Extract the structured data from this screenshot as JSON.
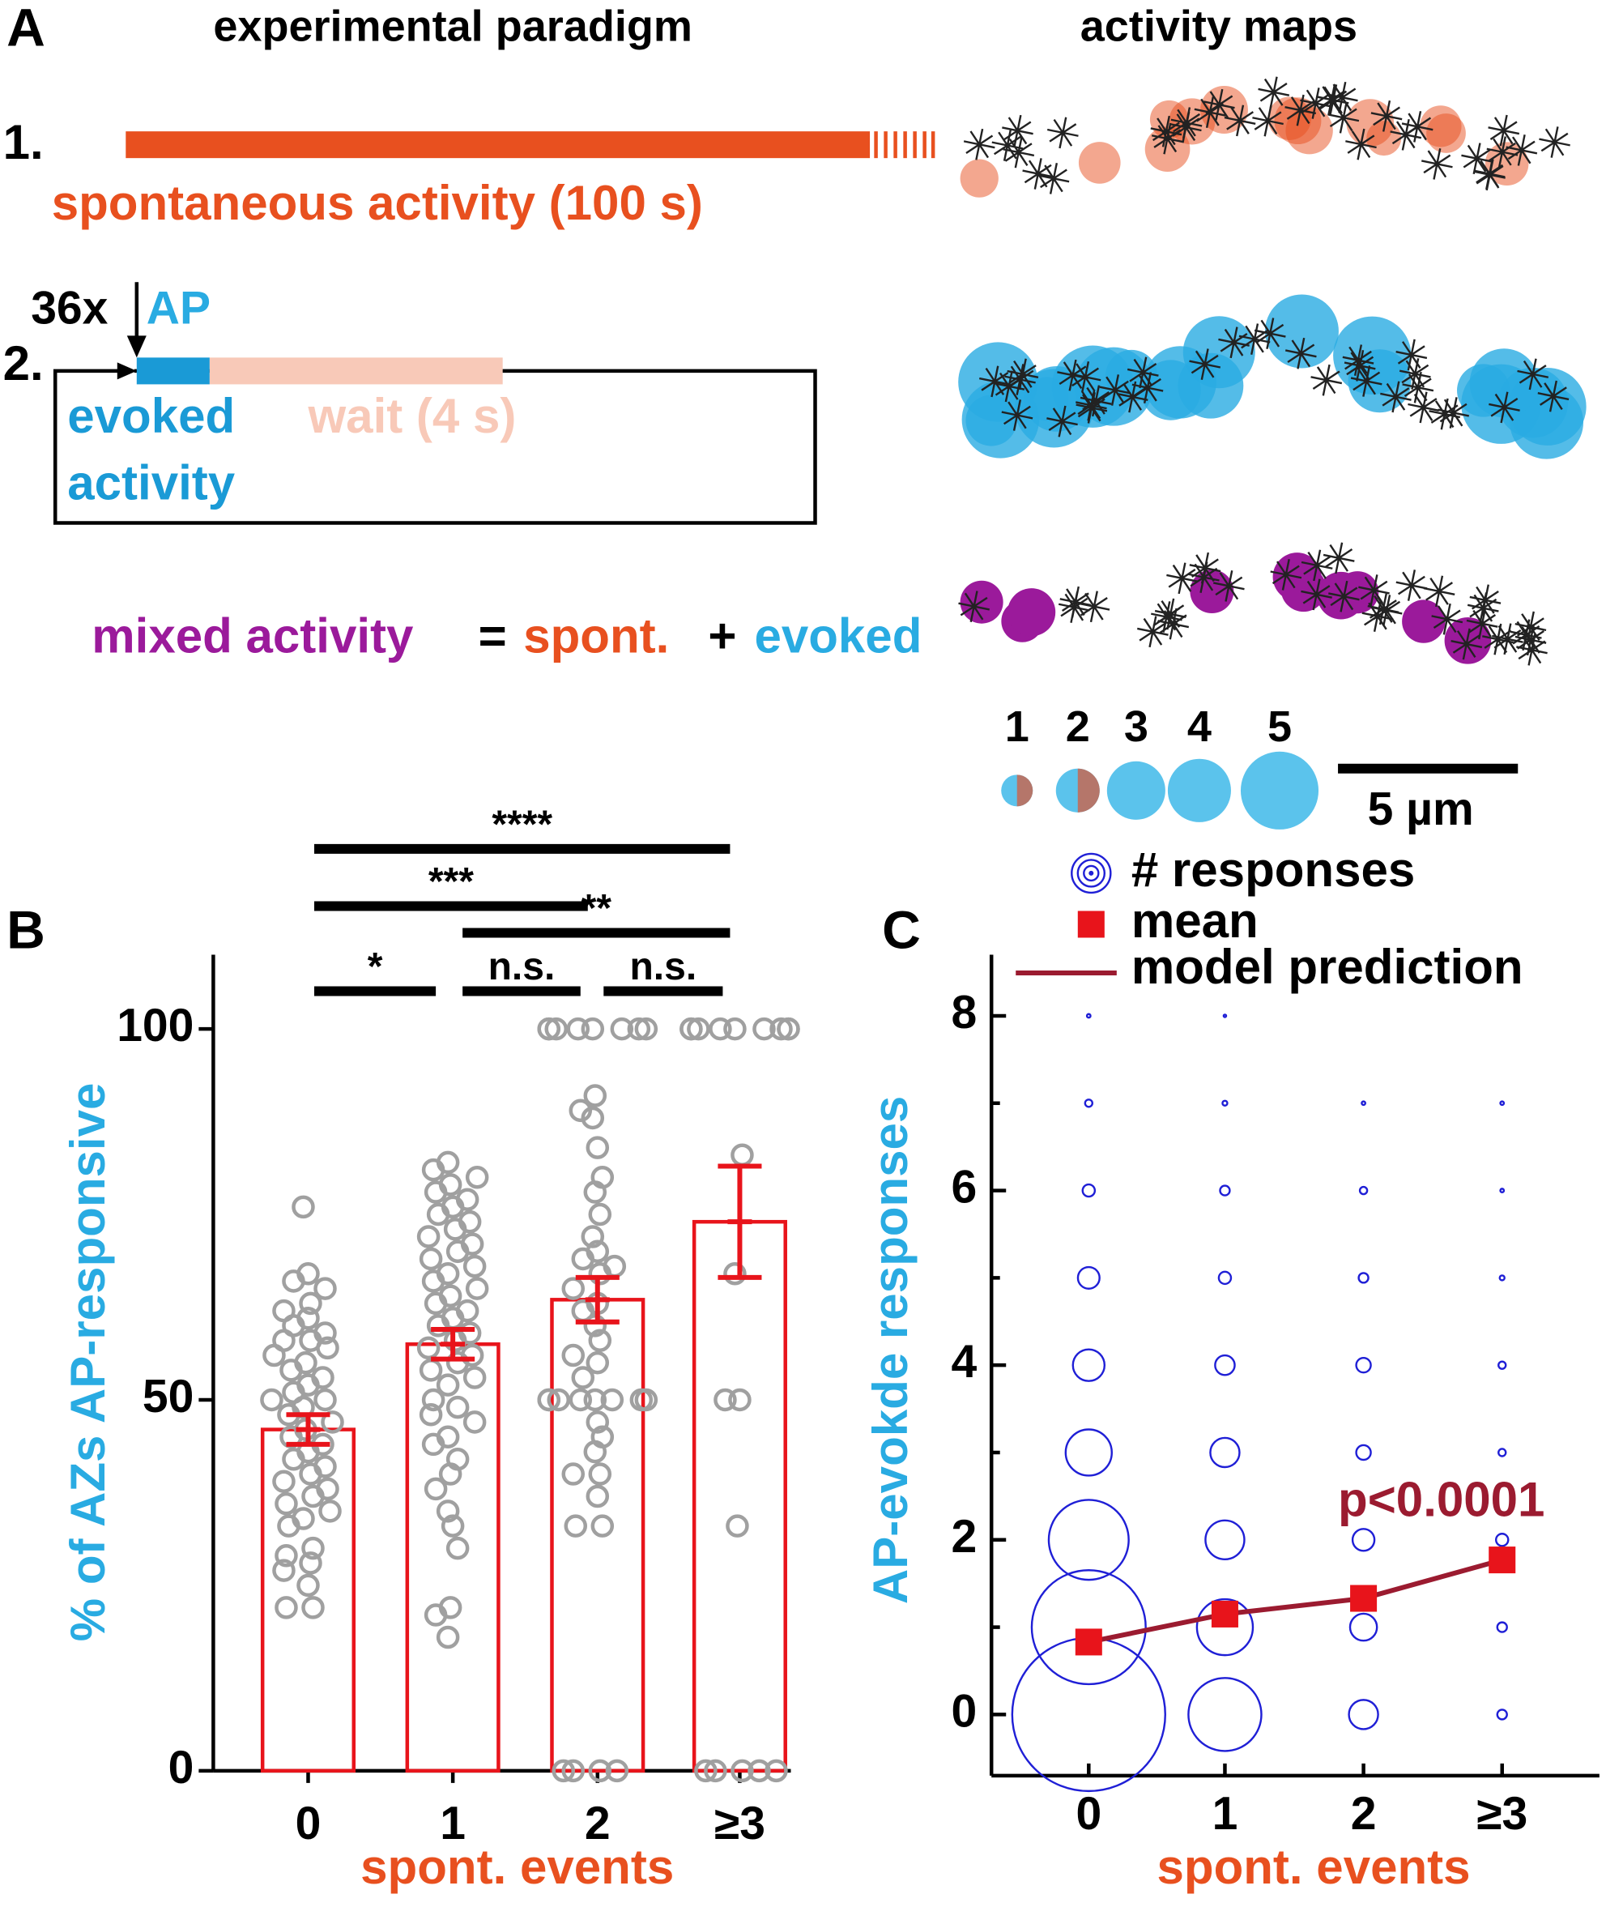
{
  "panel_a": {
    "label": "A",
    "title_left": "experimental paradigm",
    "title_right": "activity maps",
    "step1": "1.",
    "spontaneous": "spontaneous activity (100 s)",
    "step2": "2.",
    "repeats": "36x",
    "ap": "AP",
    "evoked_1": "evoked",
    "evoked_2": "activity",
    "wait": "wait (4 s)",
    "mixed": "mixed activity",
    "equals": "=",
    "spont": "spont.",
    "plus": "+",
    "evoked": "evoked",
    "size_legend": [
      1,
      2,
      3,
      4,
      5
    ],
    "scale_bar": "5 µm"
  },
  "chart_data": [
    {
      "type": "bar",
      "label": "B",
      "ylabel": "% of AZs AP-responsive",
      "xlabel": "spont. events",
      "categories": [
        "0",
        "1",
        "2",
        "≥3"
      ],
      "values": [
        46,
        57.5,
        63.5,
        74
      ],
      "errors": [
        2,
        2,
        3,
        7.5
      ],
      "color": "#e8141b",
      "point_color": "#a0a0a0",
      "ylim": [
        0,
        110
      ],
      "yticks": [
        0,
        50,
        100
      ],
      "points": [
        [
          76,
          67,
          66,
          65,
          63,
          62,
          61,
          60,
          59,
          58,
          58,
          57,
          56,
          55,
          54,
          53,
          52,
          51,
          50,
          50,
          49,
          48,
          47,
          46,
          45,
          44,
          43,
          42,
          41,
          40,
          39,
          38,
          37,
          36,
          35,
          34,
          33,
          30,
          29,
          28,
          27,
          25,
          22,
          22
        ],
        [
          82,
          81,
          80,
          79,
          78,
          77,
          76,
          75,
          74,
          73,
          72,
          71,
          70,
          69,
          68,
          67,
          66,
          65,
          64,
          63,
          62,
          61,
          60,
          59,
          58,
          57,
          56,
          55,
          54,
          53,
          52,
          50,
          49,
          48,
          47,
          45,
          44,
          42,
          40,
          38,
          35,
          33,
          30,
          22,
          21,
          18
        ],
        [
          100,
          100,
          100,
          100,
          100,
          100,
          100,
          100,
          91,
          89,
          88,
          84,
          80,
          78,
          75,
          72,
          70,
          69,
          68,
          67,
          65,
          63,
          62,
          60,
          58,
          56,
          55,
          53,
          50,
          50,
          50,
          50,
          50,
          50,
          50,
          50,
          47,
          45,
          43,
          40,
          40,
          37,
          33,
          33,
          0,
          0,
          0,
          0
        ],
        [
          100,
          100,
          100,
          100,
          100,
          100,
          100,
          100,
          100,
          83,
          67,
          50,
          50,
          33,
          0,
          0,
          0,
          0,
          0
        ]
      ],
      "comparisons": [
        {
          "between": [
            "0",
            "≥3"
          ],
          "label": "****"
        },
        {
          "between": [
            "0",
            "2"
          ],
          "label": "***"
        },
        {
          "between": [
            "1",
            "≥3"
          ],
          "label": "**"
        },
        {
          "between": [
            "0",
            "1"
          ],
          "label": "*"
        },
        {
          "between": [
            "1",
            "2"
          ],
          "label": "n.s."
        },
        {
          "between": [
            "2",
            "≥3"
          ],
          "label": "n.s."
        }
      ]
    },
    {
      "type": "bubble",
      "label": "C",
      "ylabel": "AP-evokde responses",
      "xlabel": "spont. events",
      "categories": [
        "0",
        "1",
        "2",
        "≥3"
      ],
      "ylim": [
        -0.7,
        8.7
      ],
      "yticks": [
        0,
        2,
        4,
        6,
        8
      ],
      "minor_yticks": [
        1,
        3,
        5,
        7
      ],
      "bubble_name": "# responses",
      "bubble_color": "#1f1fd6",
      "bubbles": {
        "category": [
          "0",
          "0",
          "0",
          "0",
          "0",
          "0",
          "0",
          "0",
          "0",
          "1",
          "1",
          "1",
          "1",
          "1",
          "1",
          "1",
          "1",
          "1",
          "2",
          "2",
          "2",
          "2",
          "2",
          "2",
          "2",
          "2",
          "≥3",
          "≥3",
          "≥3",
          "≥3",
          "≥3",
          "≥3",
          "≥3",
          "≥3"
        ],
        "y": [
          0,
          1,
          2,
          3,
          4,
          5,
          6,
          7,
          8,
          0,
          1,
          2,
          3,
          4,
          5,
          6,
          7,
          8,
          0,
          1,
          2,
          3,
          4,
          5,
          6,
          7,
          0,
          1,
          2,
          3,
          4,
          5,
          6,
          7
        ],
        "size": [
          110,
          61,
          30,
          10,
          4.7,
          2.2,
          0.7,
          0.25,
          0.06,
          25,
          14.7,
          7.1,
          4,
          1.8,
          0.7,
          0.44,
          0.11,
          0.03,
          4,
          3.4,
          2.25,
          1,
          1,
          0.44,
          0.25,
          0.06,
          0.44,
          0.44,
          0.7,
          0.25,
          0.25,
          0.11,
          0.06,
          0.06
        ]
      },
      "series": [
        {
          "name": "mean",
          "color": "#e8141b",
          "values": [
            0.83,
            1.15,
            1.33,
            1.77
          ]
        },
        {
          "name": "model prediction",
          "color": "#9b1b30",
          "values": [
            0.83,
            1.15,
            1.33,
            1.77
          ]
        }
      ],
      "annotation": "p<0.0001"
    }
  ]
}
